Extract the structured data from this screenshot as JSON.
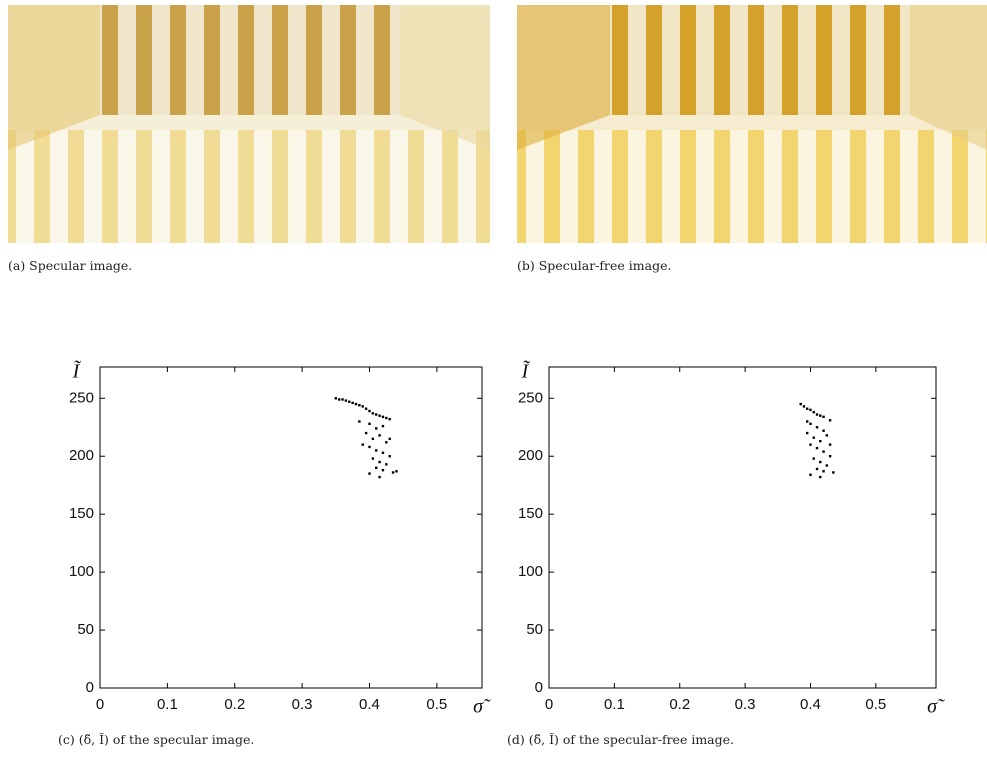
{
  "images": [
    {
      "caption": "(a) Specular image."
    },
    {
      "caption": "(b) Specular-free image."
    }
  ],
  "chart_data": [
    {
      "type": "scatter",
      "caption": "(c) (δ̃, Ĩ) of the specular image.",
      "x_label": "σ̃",
      "y_label": "Ĩ",
      "color": "#000000",
      "xlim": [
        0,
        0.567
      ],
      "ylim": [
        0,
        277
      ],
      "xticks": [
        0,
        0.1,
        0.2,
        0.3,
        0.4,
        0.5
      ],
      "yticks": [
        0,
        50,
        100,
        150,
        200,
        250
      ],
      "x": [
        0.35,
        0.355,
        0.36,
        0.365,
        0.37,
        0.375,
        0.38,
        0.385,
        0.39,
        0.395,
        0.4,
        0.405,
        0.41,
        0.415,
        0.42,
        0.425,
        0.43,
        0.4,
        0.41,
        0.42,
        0.395,
        0.405,
        0.415,
        0.425,
        0.4,
        0.41,
        0.42,
        0.43,
        0.405,
        0.415,
        0.425,
        0.41,
        0.42,
        0.435,
        0.415,
        0.4,
        0.39,
        0.43,
        0.44,
        0.385
      ],
      "values": [
        250,
        249,
        249,
        248,
        247,
        246,
        245,
        244,
        243,
        241,
        239,
        237,
        236,
        235,
        234,
        233,
        232,
        228,
        224,
        226,
        220,
        215,
        218,
        212,
        208,
        205,
        203,
        200,
        198,
        195,
        193,
        190,
        188,
        186,
        182,
        185,
        210,
        215,
        187,
        230
      ]
    },
    {
      "type": "scatter",
      "caption": "(d) (δ̃, Ĩ) of the specular-free image.",
      "x_label": "σ̃",
      "y_label": "Ĩ",
      "color": "#000000",
      "xlim": [
        0,
        0.592
      ],
      "ylim": [
        0,
        277
      ],
      "xticks": [
        0,
        0.1,
        0.2,
        0.3,
        0.4,
        0.5
      ],
      "yticks": [
        0,
        50,
        100,
        150,
        200,
        250
      ],
      "x": [
        0.385,
        0.39,
        0.395,
        0.4,
        0.405,
        0.41,
        0.415,
        0.42,
        0.43,
        0.4,
        0.41,
        0.42,
        0.395,
        0.405,
        0.415,
        0.425,
        0.4,
        0.41,
        0.42,
        0.43,
        0.405,
        0.415,
        0.425,
        0.41,
        0.42,
        0.435,
        0.415,
        0.4,
        0.395,
        0.43
      ],
      "values": [
        245,
        243,
        241,
        240,
        238,
        236,
        235,
        234,
        231,
        228,
        225,
        222,
        220,
        216,
        213,
        218,
        210,
        207,
        204,
        200,
        198,
        195,
        192,
        189,
        187,
        186,
        182,
        184,
        230,
        210
      ]
    }
  ]
}
